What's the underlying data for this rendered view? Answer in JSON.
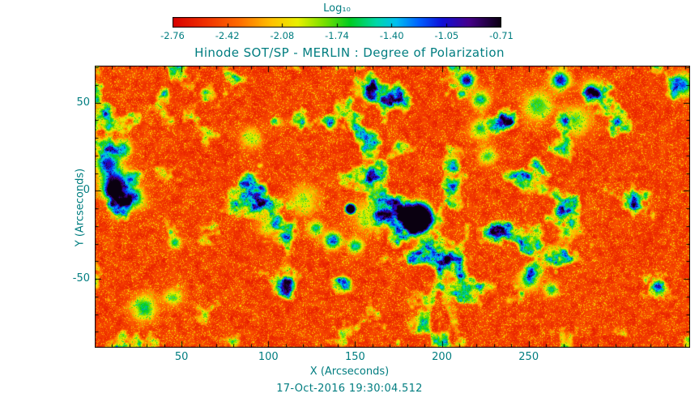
{
  "chart_data": {
    "type": "heatmap",
    "title": "Hinode SOT/SP - MERLIN : Degree of Polarization",
    "xlabel": "X (Arcseconds)",
    "ylabel": "Y (Arcseconds)",
    "caption_datetime": "17-Oct-2016 19:30:04.512",
    "x_range": [
      0,
      343
    ],
    "y_range": [
      -89,
      71
    ],
    "x_ticks": [
      50,
      100,
      150,
      200,
      250
    ],
    "y_ticks": [
      50,
      0,
      -50
    ],
    "minor_tick_step": 10,
    "frame_color": "#000000",
    "text_color": "#007d80",
    "background_color": "#ffffff",
    "colorbar": {
      "label": "Log₁₀",
      "quantity": "log10 degree of polarization",
      "tick_labels": [
        "-2.76",
        "-2.42",
        "-2.08",
        "-1.74",
        "-1.40",
        "-1.05",
        "-0.71"
      ],
      "tick_values": [
        -2.76,
        -2.42,
        -2.08,
        -1.74,
        -1.4,
        -1.05,
        -0.71
      ],
      "range": [
        -2.76,
        -0.71
      ]
    },
    "colormap": [
      {
        "pos": 0.0,
        "color": "#d80000"
      },
      {
        "pos": 0.1,
        "color": "#f03000"
      },
      {
        "pos": 0.2,
        "color": "#ff6a00"
      },
      {
        "pos": 0.3,
        "color": "#ffc000"
      },
      {
        "pos": 0.38,
        "color": "#eaf000"
      },
      {
        "pos": 0.46,
        "color": "#7ae000"
      },
      {
        "pos": 0.54,
        "color": "#00cc22"
      },
      {
        "pos": 0.62,
        "color": "#00d8a8"
      },
      {
        "pos": 0.68,
        "color": "#00c0f0"
      },
      {
        "pos": 0.75,
        "color": "#0060ff"
      },
      {
        "pos": 0.82,
        "color": "#1010d8"
      },
      {
        "pos": 0.9,
        "color": "#46008c"
      },
      {
        "pos": 1.0,
        "color": "#0a0010"
      }
    ],
    "noise": {
      "fine_scale": 7,
      "coarse_scale": 34,
      "base": 0.02,
      "fine_amp": 0.15,
      "speckle_amp": 0.06,
      "speckle_threshold": 0.88,
      "speckle_boost": 0.13,
      "network_threshold": 0.58,
      "network_gain": 3.0
    },
    "features": [
      {
        "name": "large-sunspot",
        "x": 186,
        "y": -15,
        "r": 9.0,
        "amp": 1.2,
        "p": 4
      },
      {
        "name": "small-pore",
        "x": 147,
        "y": -10,
        "r": 3.2,
        "amp": 1.0,
        "p": 4
      },
      {
        "name": "left-plage",
        "x": 12,
        "y": 4,
        "r": 8.0,
        "amp": 0.85,
        "p": 2
      },
      {
        "name": "left-plage",
        "x": 7,
        "y": 16,
        "r": 6.0,
        "amp": 0.7,
        "p": 2
      },
      {
        "name": "left-plage",
        "x": 22,
        "y": -4,
        "r": 6.0,
        "amp": 0.6,
        "p": 2
      },
      {
        "name": "left-plage",
        "x": 16,
        "y": 24,
        "r": 5.0,
        "amp": 0.55,
        "p": 2
      },
      {
        "name": "left-plage-core",
        "x": 10,
        "y": 0,
        "r": 4.0,
        "amp": 0.7,
        "p": 2
      },
      {
        "name": "top-network",
        "x": 214,
        "y": 63,
        "r": 4.5,
        "amp": 0.8,
        "p": 2
      },
      {
        "name": "top-network",
        "x": 222,
        "y": 52,
        "r": 5.0,
        "amp": 0.5,
        "p": 2
      },
      {
        "name": "top-network",
        "x": 222,
        "y": 35,
        "r": 6.0,
        "amp": 0.4,
        "p": 2
      },
      {
        "name": "top-network",
        "x": 226,
        "y": 20,
        "r": 5.0,
        "amp": 0.38,
        "p": 2
      },
      {
        "name": "topright-network",
        "x": 268,
        "y": 63,
        "r": 5.0,
        "amp": 0.75,
        "p": 2
      },
      {
        "name": "topright-network",
        "x": 255,
        "y": 48,
        "r": 8.0,
        "amp": 0.42,
        "p": 2
      },
      {
        "name": "topright-network",
        "x": 277,
        "y": 40,
        "r": 8.0,
        "amp": 0.35,
        "p": 2
      },
      {
        "name": "topright-network",
        "x": 286,
        "y": 58,
        "r": 5.0,
        "amp": 0.5,
        "p": 2
      },
      {
        "name": "far-topright",
        "x": 338,
        "y": 60,
        "r": 6.0,
        "amp": 0.65,
        "p": 2
      },
      {
        "name": "center-network",
        "x": 137,
        "y": -28,
        "r": 5.0,
        "amp": 0.62,
        "p": 2
      },
      {
        "name": "center-network",
        "x": 150,
        "y": -31,
        "r": 4.0,
        "amp": 0.55,
        "p": 2
      },
      {
        "name": "center-network",
        "x": 127,
        "y": -21,
        "r": 4.0,
        "amp": 0.5,
        "p": 2
      },
      {
        "name": "center-wash",
        "x": 158,
        "y": -14,
        "r": 9.0,
        "amp": 0.32,
        "p": 2
      },
      {
        "name": "center-wash",
        "x": 120,
        "y": -5,
        "r": 8.0,
        "amp": 0.3,
        "p": 2
      },
      {
        "name": "center-wash",
        "x": 100,
        "y": -20,
        "r": 6.0,
        "amp": 0.3,
        "p": 2
      },
      {
        "name": "bottomleft-network",
        "x": 28,
        "y": -66,
        "r": 7.0,
        "amp": 0.45,
        "p": 2
      },
      {
        "name": "bottomleft-network",
        "x": 45,
        "y": -60,
        "r": 5.0,
        "amp": 0.35,
        "p": 2
      },
      {
        "name": "right-network",
        "x": 250,
        "y": -50,
        "r": 6.0,
        "amp": 0.5,
        "p": 2
      },
      {
        "name": "right-network",
        "x": 263,
        "y": -56,
        "r": 4.0,
        "amp": 0.45,
        "p": 2
      },
      {
        "name": "mid-speck",
        "x": 46,
        "y": -29,
        "r": 3.5,
        "amp": 0.5,
        "p": 2
      },
      {
        "name": "upper-wash",
        "x": 90,
        "y": 30,
        "r": 6.0,
        "amp": 0.3,
        "p": 2
      }
    ]
  }
}
